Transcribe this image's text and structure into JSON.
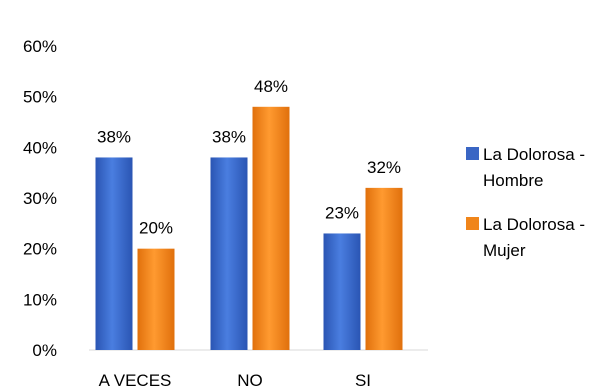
{
  "chart_data": {
    "type": "bar",
    "categories": [
      "A VECES",
      "NO",
      "SI"
    ],
    "series": [
      {
        "name": "La Dolorosa - Hombre",
        "values": [
          38,
          38,
          23
        ],
        "labels": [
          "38%",
          "38%",
          "23%"
        ],
        "color": "#3a66c4"
      },
      {
        "name": "La Dolorosa - Mujer",
        "values": [
          20,
          48,
          32
        ],
        "labels": [
          "20%",
          "48%",
          "32%"
        ],
        "color": "#f0851a"
      }
    ],
    "y_ticks": [
      "0%",
      "10%",
      "20%",
      "30%",
      "40%",
      "50%",
      "60%"
    ],
    "ylim": [
      0,
      60
    ],
    "grid": false,
    "legend_position": "right"
  }
}
